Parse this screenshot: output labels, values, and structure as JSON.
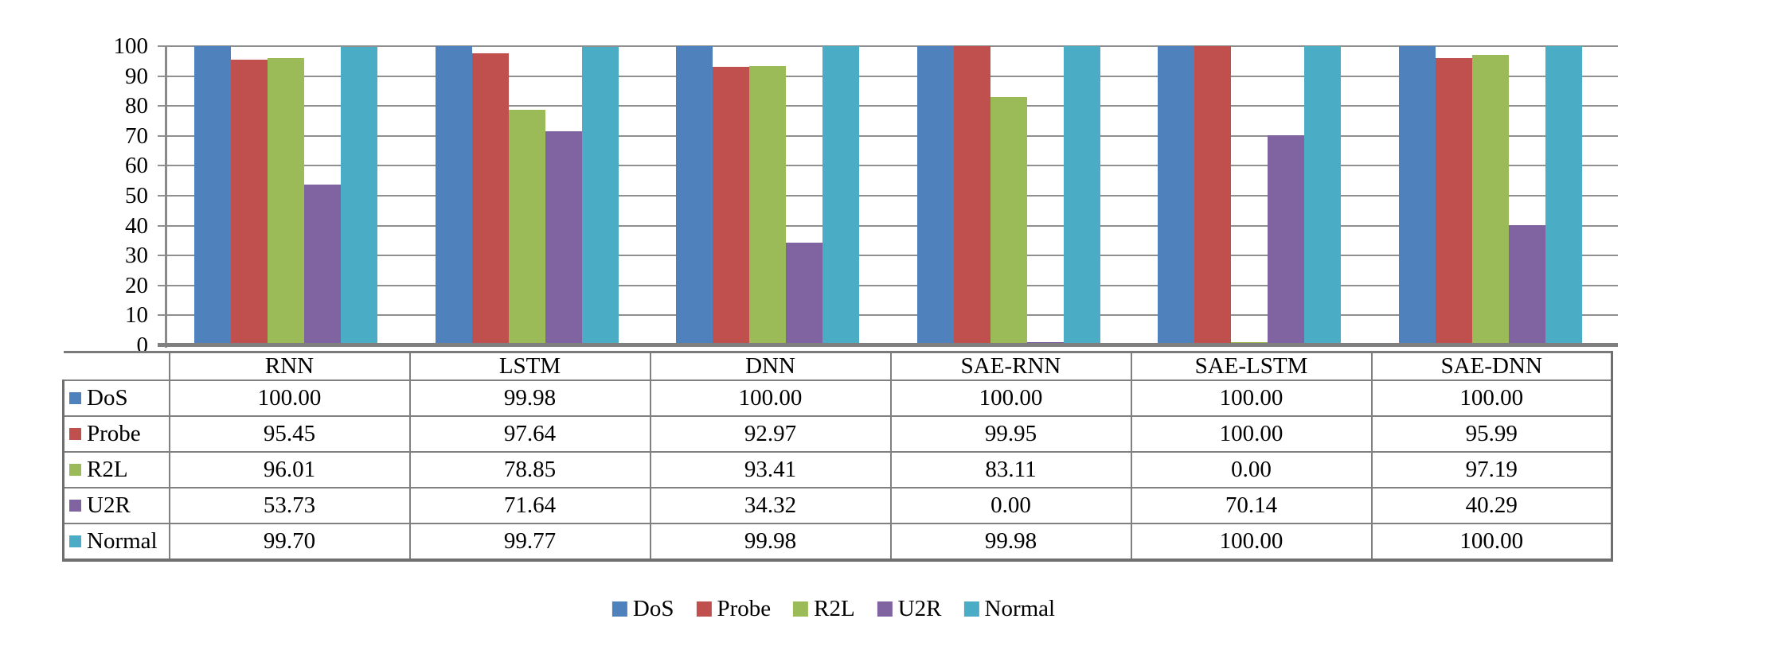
{
  "chart_data": {
    "type": "bar",
    "title": "",
    "xlabel": "",
    "ylabel": "",
    "categories": [
      "RNN",
      "LSTM",
      "DNN",
      "SAE-RNN",
      "SAE-LSTM",
      "SAE-DNN"
    ],
    "series": [
      {
        "name": "DoS",
        "color": "#4F81BD",
        "values": [
          "100.00",
          "99.98",
          "100.00",
          "100.00",
          "100.00",
          "100.00"
        ]
      },
      {
        "name": "Probe",
        "color": "#C0504D",
        "values": [
          "95.45",
          "97.64",
          "92.97",
          "99.95",
          "100.00",
          "95.99"
        ]
      },
      {
        "name": "R2L",
        "color": "#9BBB59",
        "values": [
          "96.01",
          "78.85",
          "93.41",
          "83.11",
          "0.00",
          "97.19"
        ]
      },
      {
        "name": "U2R",
        "color": "#8064A2",
        "values": [
          "53.73",
          "71.64",
          "34.32",
          "0.00",
          "70.14",
          "40.29"
        ]
      },
      {
        "name": "Normal",
        "color": "#4BACC6",
        "values": [
          "99.70",
          "99.77",
          "99.98",
          "99.98",
          "100.00",
          "100.00"
        ]
      }
    ],
    "ylim": [
      0,
      100
    ],
    "ytick_step": 10,
    "yticks": [
      "100",
      "90",
      "80",
      "70",
      "60",
      "50",
      "40",
      "30",
      "20",
      "10",
      "0"
    ],
    "grid": true,
    "gridline_color": "#8f8f8f",
    "axis_color": "#7f7f7f",
    "legend_position": "bottom",
    "data_table_shown": true
  }
}
